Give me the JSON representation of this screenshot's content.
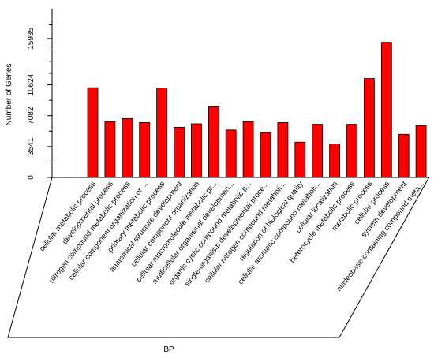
{
  "chart_data": {
    "type": "bar",
    "ylabel": "Number of Genes",
    "xlabel": "BP",
    "ylim": [
      0,
      19000
    ],
    "yticks": [
      0,
      3541,
      7082,
      10624,
      15935
    ],
    "bar_color": "#ff0000",
    "categories": [
      "cellular metabolic process",
      "developmental process",
      "nitrogen compound metabolic process",
      "cellular component organization or ...",
      "primary metabolic process",
      "anatomical structure development",
      "cellular component organization",
      "cellular macromolecule metabolic pr...",
      "multicellular organismal developmen...",
      "organic cyclic compound metabolic p...",
      "single-organism developmental proce...",
      "cellular nitrogen compound metaboli...",
      "regulation of biological quality",
      "cellular aromatic compound metaboli...",
      "cellular localization",
      "heterocycle metabolic process",
      "metabolic process",
      "cellular process",
      "system development",
      "nucleobase-containing compound meta..."
    ],
    "values": [
      10300,
      6400,
      6750,
      6300,
      10250,
      5750,
      6150,
      8100,
      5450,
      6400,
      5150,
      6300,
      4050,
      6100,
      3850,
      6100,
      11350,
      15500,
      4950,
      5950
    ]
  }
}
